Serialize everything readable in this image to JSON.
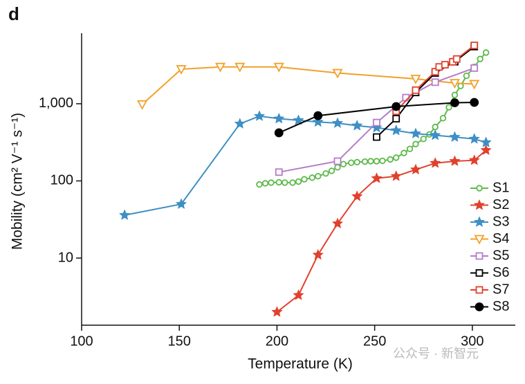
{
  "chart_data": {
    "type": "line",
    "panel_label": "d",
    "x_label": "Temperature (K)",
    "y_label": "Mobility (cm² V⁻¹ s⁻¹)",
    "xlim": [
      100,
      322
    ],
    "xticks": [
      100,
      150,
      200,
      250,
      300
    ],
    "ylim": [
      1.35,
      8200
    ],
    "yticks": [
      10,
      100,
      {
        "value": 1000,
        "label": "1,000"
      }
    ],
    "log_y": true,
    "legend": "lower right",
    "watermark": "公众号 · 新智元",
    "series": [
      {
        "name": "S1",
        "color": "#5db94a",
        "marker": "circle",
        "filled": false,
        "x": [
          191,
          194,
          197,
          201,
          204,
          208,
          211,
          214,
          218,
          221,
          225,
          228,
          231,
          234,
          238,
          241,
          245,
          248,
          251,
          254,
          258,
          261,
          265,
          268,
          271,
          275,
          278,
          281,
          285,
          288,
          291,
          294,
          297,
          301,
          304,
          307
        ],
        "values": [
          90,
          93,
          95,
          96,
          95,
          95,
          98,
          105,
          110,
          115,
          125,
          135,
          150,
          165,
          172,
          175,
          178,
          180,
          180,
          182,
          190,
          200,
          230,
          260,
          300,
          350,
          400,
          500,
          650,
          900,
          1300,
          1700,
          2300,
          3000,
          3800,
          4600
        ]
      },
      {
        "name": "S2",
        "color": "#e0412c",
        "marker": "star",
        "filled": true,
        "x": [
          200,
          211,
          221,
          231,
          241,
          251,
          261,
          271,
          281,
          291,
          301,
          307
        ],
        "values": [
          2,
          3.3,
          11,
          28,
          63,
          108,
          115,
          140,
          170,
          180,
          185,
          250
        ]
      },
      {
        "name": "S3",
        "color": "#3d8fc4",
        "marker": "star",
        "filled": true,
        "x": [
          122,
          151,
          181,
          191,
          201,
          211,
          221,
          231,
          241,
          251,
          261,
          271,
          281,
          291,
          301,
          307
        ],
        "values": [
          36,
          50,
          550,
          690,
          640,
          610,
          580,
          560,
          520,
          490,
          450,
          410,
          390,
          370,
          350,
          315
        ]
      },
      {
        "name": "S4",
        "color": "#f2a02a",
        "marker": "triangle-down",
        "filled": false,
        "x": [
          131,
          151,
          171,
          181,
          201,
          231,
          271,
          291,
          301
        ],
        "values": [
          980,
          2800,
          3000,
          3000,
          3000,
          2500,
          2100,
          1850,
          1800
        ]
      },
      {
        "name": "S5",
        "color": "#b57bc8",
        "marker": "square",
        "filled": false,
        "x": [
          201,
          231,
          251,
          266,
          281,
          301
        ],
        "values": [
          130,
          180,
          570,
          1200,
          1900,
          2900
        ]
      },
      {
        "name": "S6",
        "color": "#000000",
        "marker": "square",
        "filled": false,
        "x": [
          251,
          261,
          271,
          281,
          291,
          301
        ],
        "values": [
          370,
          640,
          1400,
          2500,
          3500,
          5500
        ]
      },
      {
        "name": "S7",
        "color": "#e0412c",
        "marker": "square",
        "filled": false,
        "x": [
          261,
          271,
          281,
          283,
          286,
          290,
          292,
          301
        ],
        "values": [
          800,
          1500,
          2600,
          3000,
          3200,
          3500,
          3800,
          5700
        ]
      },
      {
        "name": "S8",
        "color": "#000000",
        "marker": "circle",
        "filled": true,
        "x": [
          201,
          221,
          261,
          291,
          301
        ],
        "values": [
          420,
          700,
          920,
          1030,
          1040
        ]
      }
    ]
  }
}
